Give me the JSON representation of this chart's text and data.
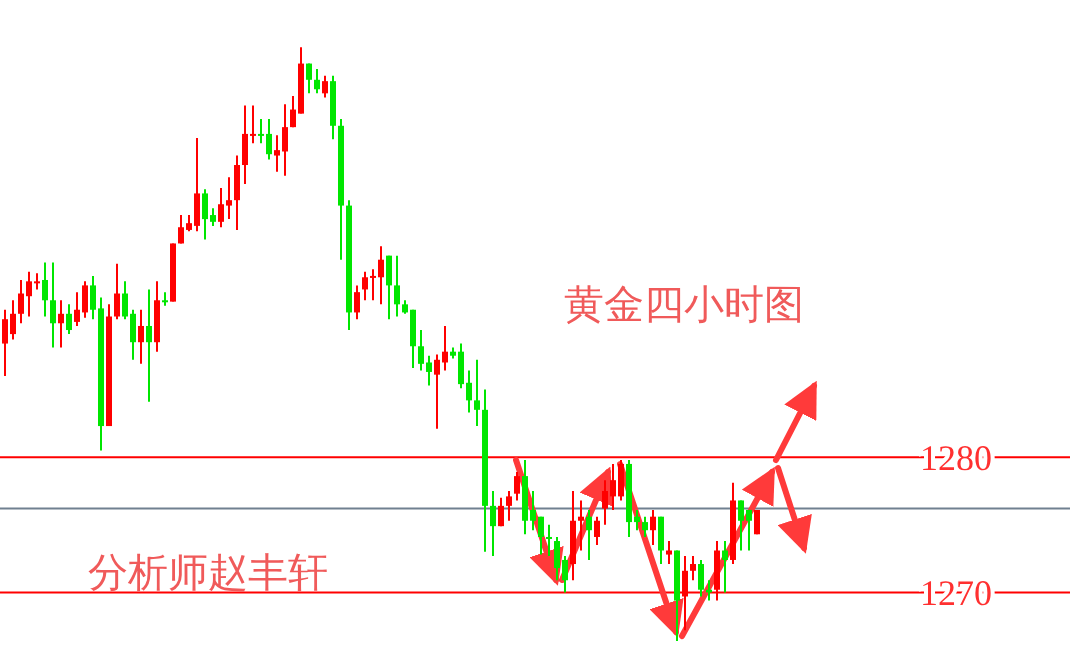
{
  "chart_data": {
    "type": "candlestick",
    "categories": [
      null,
      null,
      null,
      null,
      null,
      null,
      null,
      null,
      null,
      null,
      null,
      null,
      null,
      null,
      null,
      null,
      null,
      null,
      null,
      null,
      null,
      null,
      null,
      null,
      null,
      null,
      null,
      null,
      null,
      null,
      null,
      null,
      null,
      null,
      null,
      null,
      null,
      null,
      null,
      null,
      null,
      null,
      null,
      null,
      null,
      null,
      null,
      null,
      null,
      null,
      null,
      null,
      null,
      null,
      null,
      null,
      null,
      null,
      null,
      null,
      null,
      null,
      null,
      null,
      null,
      null,
      null,
      null,
      null,
      null,
      null,
      null,
      null,
      null,
      null,
      null,
      null,
      null,
      null,
      null,
      null,
      null,
      null,
      null,
      null,
      null,
      null,
      null,
      null,
      null,
      null,
      null,
      null,
      null,
      null
    ],
    "ylim": [
      1265.3,
      1313.8
    ],
    "yticks": [
      1270,
      1280
    ],
    "tick_labels": "y",
    "ohlc": [
      [
        1288.4,
        1290.9,
        1286.0,
        1290.2
      ],
      [
        1289.1,
        1291.6,
        1288.7,
        1290.6
      ],
      [
        1290.6,
        1293.1,
        1289.9,
        1292.1
      ],
      [
        1291.9,
        1293.7,
        1290.4,
        1293.0
      ],
      [
        1292.9,
        1293.6,
        1292.4,
        1293.0
      ],
      [
        1293.1,
        1294.4,
        1290.4,
        1291.6
      ],
      [
        1291.6,
        1294.4,
        1288.1,
        1289.9
      ],
      [
        1289.9,
        1291.6,
        1288.1,
        1290.6
      ],
      [
        1290.6,
        1291.3,
        1289.1,
        1289.4
      ],
      [
        1290.0,
        1292.2,
        1289.7,
        1290.9
      ],
      [
        1290.7,
        1293.0,
        1290.3,
        1292.7
      ],
      [
        1292.7,
        1293.4,
        1290.2,
        1290.9
      ],
      [
        1291.0,
        1291.8,
        1280.5,
        1282.3
      ],
      [
        1282.3,
        1291.3,
        1282.3,
        1290.4
      ],
      [
        1290.4,
        1294.3,
        1290.2,
        1292.1
      ],
      [
        1292.1,
        1293.0,
        1290.2,
        1290.4
      ],
      [
        1290.6,
        1290.9,
        1287.2,
        1288.5
      ],
      [
        1288.5,
        1290.9,
        1286.9,
        1289.7
      ],
      [
        1289.7,
        1292.4,
        1284.1,
        1288.5
      ],
      [
        1288.5,
        1293.0,
        1287.8,
        1291.6
      ],
      [
        1291.6,
        1292.2,
        1291.2,
        1291.5
      ],
      [
        1291.5,
        1295.8,
        1291.5,
        1295.8
      ],
      [
        1295.8,
        1297.9,
        1295.8,
        1297.0
      ],
      [
        1296.8,
        1297.9,
        1296.7,
        1297.3
      ],
      [
        1297.1,
        1303.6,
        1296.7,
        1299.5
      ],
      [
        1299.5,
        1299.8,
        1296.1,
        1297.6
      ],
      [
        1297.9,
        1298.4,
        1297.1,
        1297.4
      ],
      [
        1297.4,
        1299.9,
        1297.0,
        1298.7
      ],
      [
        1298.6,
        1300.7,
        1297.6,
        1299.0
      ],
      [
        1299.0,
        1302.3,
        1296.8,
        1301.6
      ],
      [
        1301.6,
        1306.0,
        1300.2,
        1303.9
      ],
      [
        1303.8,
        1306.0,
        1303.2,
        1303.9
      ],
      [
        1303.9,
        1305.0,
        1303.2,
        1303.8
      ],
      [
        1303.9,
        1305.0,
        1302.0,
        1302.4
      ],
      [
        1302.3,
        1303.8,
        1301.1,
        1302.7
      ],
      [
        1302.6,
        1306.1,
        1300.8,
        1304.4
      ],
      [
        1304.4,
        1306.7,
        1304.4,
        1305.7
      ],
      [
        1305.4,
        1310.3,
        1305.4,
        1309.1
      ],
      [
        1309.1,
        1309.1,
        1306.9,
        1307.9
      ],
      [
        1307.9,
        1308.7,
        1306.9,
        1307.2
      ],
      [
        1306.9,
        1308.2,
        1306.6,
        1307.8
      ],
      [
        1307.8,
        1308.2,
        1303.5,
        1304.5
      ],
      [
        1304.5,
        1305.0,
        1294.6,
        1298.6
      ],
      [
        1298.6,
        1299.0,
        1289.4,
        1290.7
      ],
      [
        1290.7,
        1292.7,
        1290.2,
        1292.2
      ],
      [
        1292.4,
        1293.7,
        1291.6,
        1293.3
      ],
      [
        1293.3,
        1293.9,
        1291.6,
        1293.4
      ],
      [
        1293.3,
        1295.6,
        1291.3,
        1294.6
      ],
      [
        1294.9,
        1294.9,
        1290.2,
        1292.7
      ],
      [
        1292.7,
        1294.9,
        1290.4,
        1291.3
      ],
      [
        1291.3,
        1291.6,
        1290.6,
        1290.7
      ],
      [
        1290.9,
        1290.9,
        1286.6,
        1288.2
      ],
      [
        1288.2,
        1289.4,
        1286.4,
        1286.9
      ],
      [
        1287.0,
        1287.5,
        1285.3,
        1286.3
      ],
      [
        1286.1,
        1287.6,
        1282.1,
        1287.2
      ],
      [
        1287.0,
        1289.7,
        1286.4,
        1287.8
      ],
      [
        1287.8,
        1288.1,
        1287.3,
        1287.5
      ],
      [
        1287.8,
        1288.4,
        1285.1,
        1285.4
      ],
      [
        1285.5,
        1286.4,
        1283.3,
        1284.2
      ],
      [
        1284.2,
        1287.2,
        1282.3,
        1283.5
      ],
      [
        1283.5,
        1285.0,
        1273.0,
        1276.4
      ],
      [
        1276.4,
        1277.5,
        1272.7,
        1274.9
      ],
      [
        1274.9,
        1277.0,
        1274.9,
        1276.4
      ],
      [
        1276.4,
        1277.5,
        1275.3,
        1277.1
      ],
      [
        1277.3,
        1278.9,
        1276.8,
        1278.6
      ],
      [
        1278.6,
        1279.8,
        1274.3,
        1275.3
      ],
      [
        1276.1,
        1277.5,
        1274.6,
        1275.3
      ],
      [
        1275.6,
        1275.6,
        1272.8,
        1274.1
      ],
      [
        1274.1,
        1275.0,
        1272.7,
        1274.0
      ],
      [
        1273.8,
        1274.1,
        1270.9,
        1271.8
      ],
      [
        1272.4,
        1272.7,
        1270.0,
        1270.9
      ],
      [
        1272.1,
        1277.5,
        1270.9,
        1275.3
      ],
      [
        1275.3,
        1276.8,
        1273.1,
        1275.6
      ],
      [
        1275.6,
        1276.1,
        1272.4,
        1274.6
      ],
      [
        1274.1,
        1275.6,
        1273.5,
        1275.3
      ],
      [
        1276.2,
        1278.3,
        1275.0,
        1277.5
      ],
      [
        1277.1,
        1279.5,
        1276.1,
        1278.3
      ],
      [
        1277.1,
        1279.8,
        1276.8,
        1279.5
      ],
      [
        1279.5,
        1279.8,
        1274.1,
        1275.2
      ],
      [
        1275.6,
        1276.1,
        1274.6,
        1275.2
      ],
      [
        1275.2,
        1275.6,
        1274.1,
        1274.6
      ],
      [
        1274.6,
        1276.1,
        1273.5,
        1275.6
      ],
      [
        1275.6,
        1275.6,
        1272.1,
        1273.1
      ],
      [
        1272.8,
        1273.8,
        1272.1,
        1273.1
      ],
      [
        1273.1,
        1273.1,
        1266.4,
        1269.4
      ],
      [
        1269.7,
        1272.7,
        1267.2,
        1271.6
      ],
      [
        1271.6,
        1272.7,
        1270.9,
        1272.1
      ],
      [
        1272.1,
        1272.4,
        1269.7,
        1270.2
      ],
      [
        1270.2,
        1270.9,
        1269.4,
        1270.0
      ],
      [
        1270.2,
        1273.8,
        1269.4,
        1273.1
      ],
      [
        1273.1,
        1273.8,
        1270.0,
        1272.4
      ],
      [
        1272.4,
        1278.1,
        1272.1,
        1276.8
      ],
      [
        1276.8,
        1276.8,
        1273.1,
        1275.3
      ],
      [
        1276.1,
        1276.1,
        1273.1,
        1275.3
      ],
      [
        1274.3,
        1276.1,
        1274.3,
        1276.1
      ]
    ],
    "colors": [
      "#ff0000",
      "#ff0000",
      "#ff0000",
      "#ff0000",
      "#ff0000",
      "#00e600",
      "#00e600",
      "#ff0000",
      "#00e600",
      "#ff0000",
      "#ff0000",
      "#00e600",
      "#00e600",
      "#ff0000",
      "#ff0000",
      "#00e600",
      "#00e600",
      "#ff0000",
      "#00e600",
      "#ff0000",
      "#00e600",
      "#ff0000",
      "#ff0000",
      "#ff0000",
      "#ff0000",
      "#00e600",
      "#00e600",
      "#ff0000",
      "#ff0000",
      "#ff0000",
      "#ff0000",
      "#ff0000",
      "#00e600",
      "#00e600",
      "#ff0000",
      "#ff0000",
      "#ff0000",
      "#ff0000",
      "#00e600",
      "#00e600",
      "#ff0000",
      "#00e600",
      "#00e600",
      "#00e600",
      "#ff0000",
      "#ff0000",
      "#ff0000",
      "#ff0000",
      "#00e600",
      "#00e600",
      "#00e600",
      "#00e600",
      "#00e600",
      "#00e600",
      "#ff0000",
      "#ff0000",
      "#00e600",
      "#00e600",
      "#00e600",
      "#00e600",
      "#00e600",
      "#00e600",
      "#ff0000",
      "#ff0000",
      "#ff0000",
      "#00e600",
      "#00e600",
      "#00e600",
      "#00e600",
      "#00e600",
      "#00e600",
      "#ff0000",
      "#ff0000",
      "#00e600",
      "#ff0000",
      "#ff0000",
      "#ff0000",
      "#ff0000",
      "#00e600",
      "#00e600",
      "#00e600",
      "#ff0000",
      "#00e600",
      "#ff0000",
      "#00e600",
      "#ff0000",
      "#ff0000",
      "#00e600",
      "#00e600",
      "#ff0000",
      "#00e600",
      "#ff0000",
      "#00e600",
      "#00e600",
      "#ff0000"
    ],
    "ref_lines": [
      {
        "axis": "y",
        "value": 1280,
        "color": "#ff0000"
      },
      {
        "axis": "y",
        "value": 1270,
        "color": "#ff0000"
      },
      {
        "axis": "y",
        "value": 1276.2,
        "color": "#708090"
      }
    ],
    "annotations": [
      "黄金四小时图",
      "分析师赵丰轩"
    ]
  }
}
